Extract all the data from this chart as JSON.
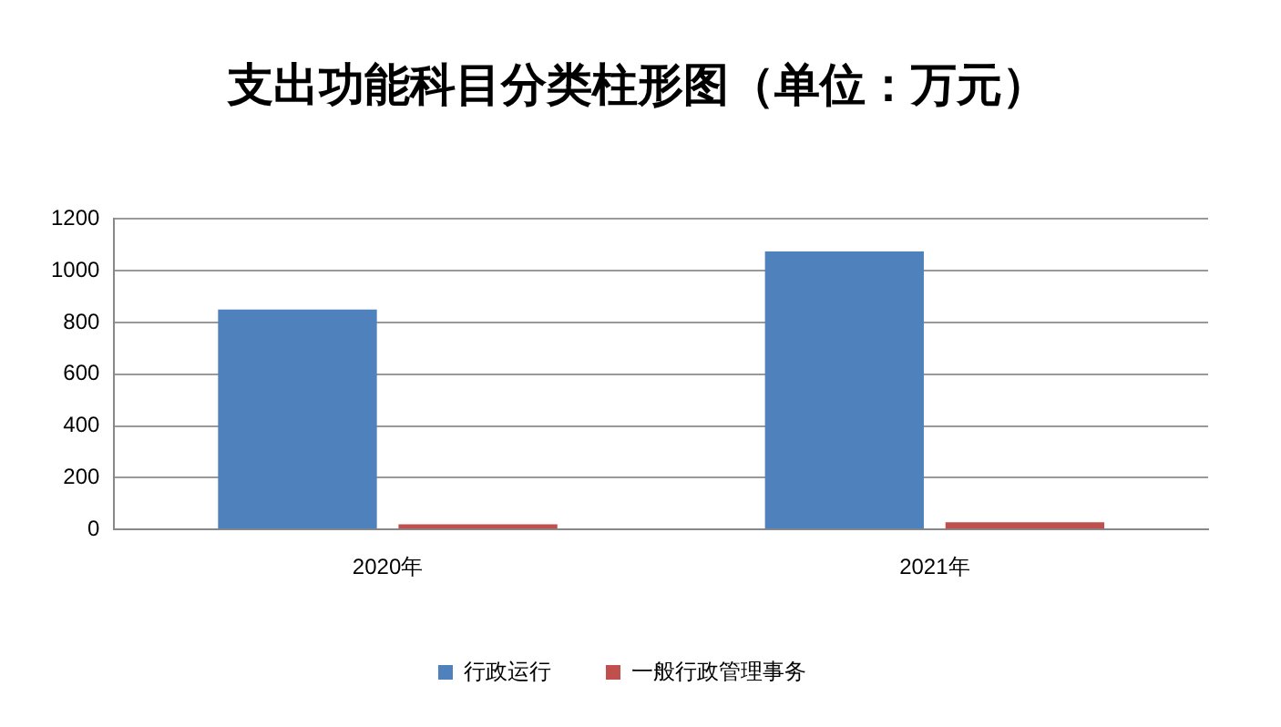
{
  "chart_data": {
    "type": "bar",
    "title": "支出功能科目分类柱形图（单位：万元）",
    "categories": [
      "2020年",
      "2021年"
    ],
    "series": [
      {
        "name": "行政运行",
        "color": "#4f81bd",
        "values": [
          850,
          1075
        ]
      },
      {
        "name": "一般行政管理事务",
        "color": "#c0504d",
        "values": [
          20,
          28
        ]
      }
    ],
    "ylim": [
      0,
      1200
    ],
    "yticks": [
      0,
      200,
      400,
      600,
      800,
      1000,
      1200
    ],
    "grid": "y",
    "legend": "bottom"
  }
}
